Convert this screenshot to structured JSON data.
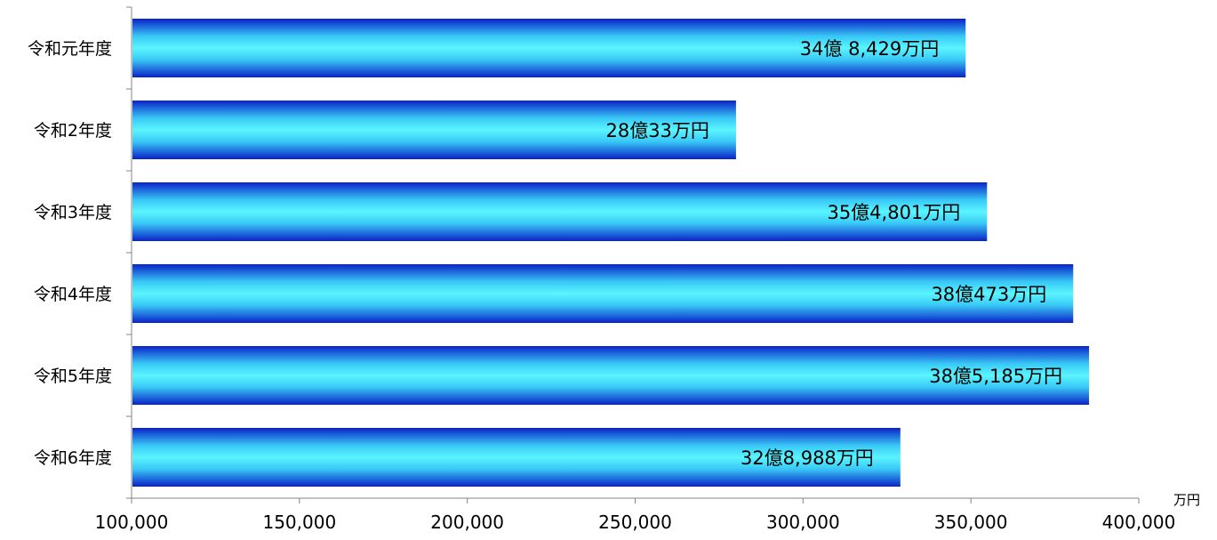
{
  "chart_data": {
    "type": "bar",
    "orientation": "horizontal",
    "categories": [
      "令和元年度",
      "令和2年度",
      "令和3年度",
      "令和4年度",
      "令和5年度",
      "令和6年度"
    ],
    "values": [
      348429,
      280033,
      354801,
      380473,
      385185,
      328988
    ],
    "data_labels": [
      "34億 8,429万円",
      "28億33万円",
      "35億4,801万円",
      "38億473万円",
      "38億5,185万円",
      "32億8,988万円"
    ],
    "x_unit": "万円",
    "xlim": [
      100000,
      400000
    ],
    "x_ticks": [
      100000,
      150000,
      200000,
      250000,
      300000,
      350000,
      400000
    ],
    "x_tick_labels": [
      "100,000",
      "150,000",
      "200,000",
      "250,000",
      "300,000",
      "350,000",
      "400,000"
    ],
    "grid": false,
    "legend": "none",
    "bar_colors": {
      "edge": "#0a22c8",
      "mid": "#5af5ff"
    }
  }
}
